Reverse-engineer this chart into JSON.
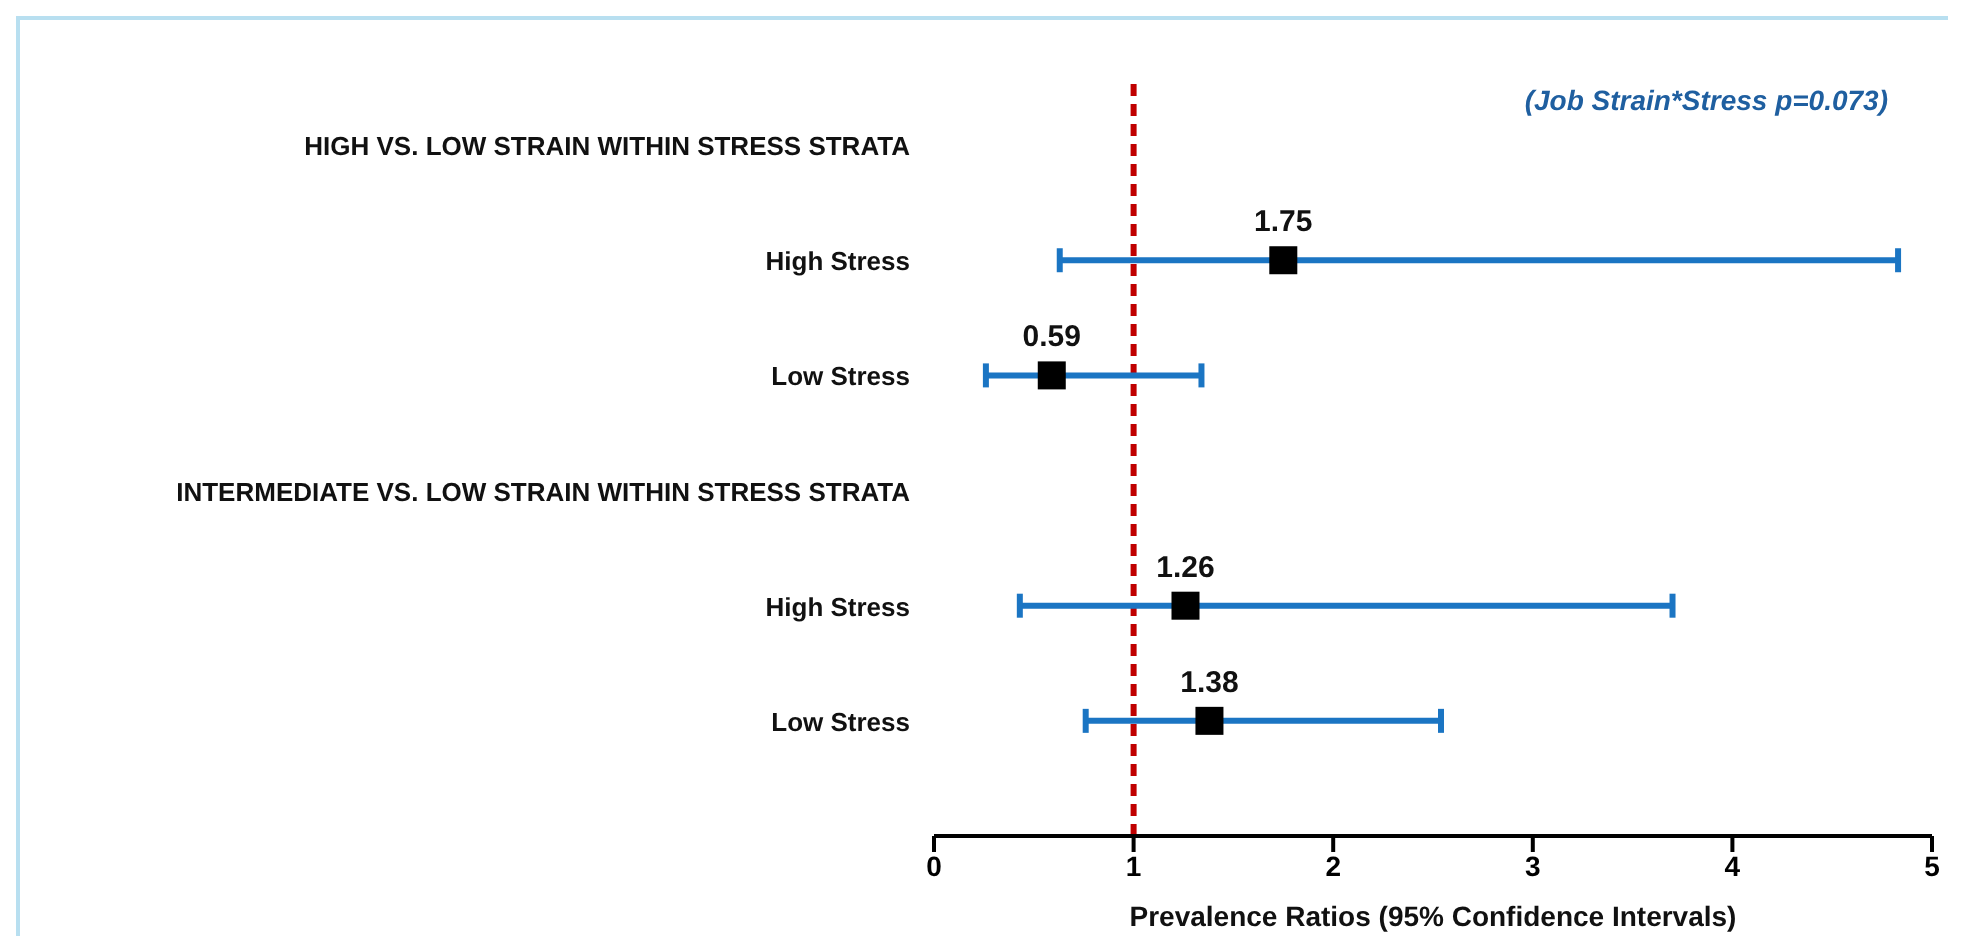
{
  "chart_data": {
    "type": "scatter",
    "orientation": "horizontal",
    "categories": [
      "HIGH VS. LOW STRAIN WITHIN STRESS STRATA",
      "High Stress",
      "Low Stress",
      "INTERMEDIATE  VS. LOW STRAIN WITHIN STRESS STRATA",
      "High Stress",
      "Low Stress"
    ],
    "series": [
      {
        "color": "#000000",
        "values": [
          null,
          1.75,
          0.59,
          null,
          1.26,
          1.38
        ],
        "errors": [
          null,
          [
            0.63,
            4.83
          ],
          [
            0.26,
            1.34
          ],
          null,
          [
            0.43,
            3.7
          ],
          [
            0.76,
            2.54
          ]
        ]
      }
    ],
    "xlim": [
      0,
      5
    ],
    "xticks": [
      0,
      1,
      2,
      3,
      4,
      5
    ],
    "xlabel": "Prevalence Ratios (95% Confidence Intervals)",
    "ref_lines": [
      {
        "axis": "x",
        "value": 1,
        "color": "#c00000",
        "line_style": "dashed"
      }
    ],
    "annotations": [
      "(Job Strain*Stress p=0.073)"
    ],
    "data_labels": true,
    "marker": "square",
    "grid": false,
    "legend": false
  }
}
